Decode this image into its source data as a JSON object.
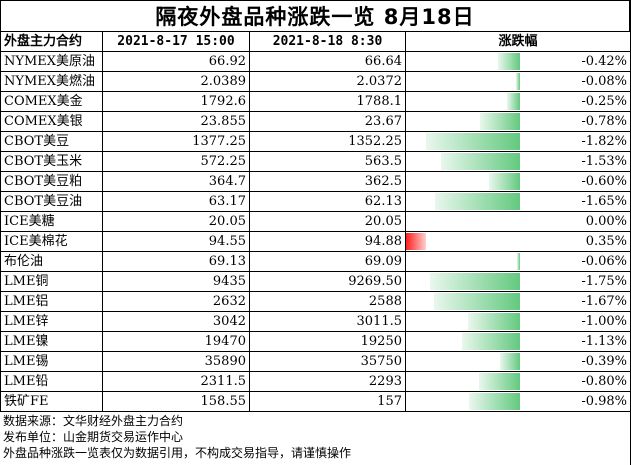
{
  "title": "隔夜外盘品种涨跌一览 8月18日",
  "headers": {
    "name": "外盘主力合约",
    "date1": "2021-8-17 15:00",
    "date2": "2021-8-18 8:30",
    "change": "涨跌幅"
  },
  "rows": [
    {
      "name": "NYMEX美原油",
      "v1": "66.92",
      "v2": "66.64",
      "pct": "-0.42%",
      "chg": -0.42
    },
    {
      "name": "NYMEX美燃油",
      "v1": "2.0389",
      "v2": "2.0372",
      "pct": "-0.08%",
      "chg": -0.08
    },
    {
      "name": "COMEX美金",
      "v1": "1792.6",
      "v2": "1788.1",
      "pct": "-0.25%",
      "chg": -0.25
    },
    {
      "name": "COMEX美银",
      "v1": "23.855",
      "v2": "23.67",
      "pct": "-0.78%",
      "chg": -0.78
    },
    {
      "name": "CBOT美豆",
      "v1": "1377.25",
      "v2": "1352.25",
      "pct": "-1.82%",
      "chg": -1.82
    },
    {
      "name": "CBOT美玉米",
      "v1": "572.25",
      "v2": "563.5",
      "pct": "-1.53%",
      "chg": -1.53
    },
    {
      "name": "CBOT美豆粕",
      "v1": "364.7",
      "v2": "362.5",
      "pct": "-0.60%",
      "chg": -0.6
    },
    {
      "name": "CBOT美豆油",
      "v1": "63.17",
      "v2": "62.13",
      "pct": "-1.65%",
      "chg": -1.65
    },
    {
      "name": "ICE美糖",
      "v1": "20.05",
      "v2": "20.05",
      "pct": "0.00%",
      "chg": 0.0
    },
    {
      "name": "ICE美棉花",
      "v1": "94.55",
      "v2": "94.88",
      "pct": "0.35%",
      "chg": 0.35
    },
    {
      "name": "布伦油",
      "v1": "69.13",
      "v2": "69.09",
      "pct": "-0.06%",
      "chg": -0.06
    },
    {
      "name": "LME铜",
      "v1": "9435",
      "v2": "9269.50",
      "pct": "-1.75%",
      "chg": -1.75
    },
    {
      "name": "LME铝",
      "v1": "2632",
      "v2": "2588",
      "pct": "-1.67%",
      "chg": -1.67
    },
    {
      "name": "LME锌",
      "v1": "3042",
      "v2": "3011.5",
      "pct": "-1.00%",
      "chg": -1.0
    },
    {
      "name": "LME镍",
      "v1": "19470",
      "v2": "19250",
      "pct": "-1.13%",
      "chg": -1.13
    },
    {
      "name": "LME锡",
      "v1": "35890",
      "v2": "35750",
      "pct": "-0.39%",
      "chg": -0.39
    },
    {
      "name": "LME铅",
      "v1": "2311.5",
      "v2": "2293",
      "pct": "-0.80%",
      "chg": -0.8
    },
    {
      "name": "铁矿FE",
      "v1": "158.55",
      "v2": "157",
      "pct": "-0.98%",
      "chg": -0.98
    }
  ],
  "footer": {
    "source": "数据来源：文华财经外盘主力合约",
    "publisher": "发布单位：山金期货交易运作中心",
    "disclaimer": "外盘品种涨跌一览表仅为数据引用，不构成交易指导，请谨慎操作"
  },
  "colors": {
    "negative_bar": "#63c97f",
    "positive_bar": "#ff1c1c"
  }
}
